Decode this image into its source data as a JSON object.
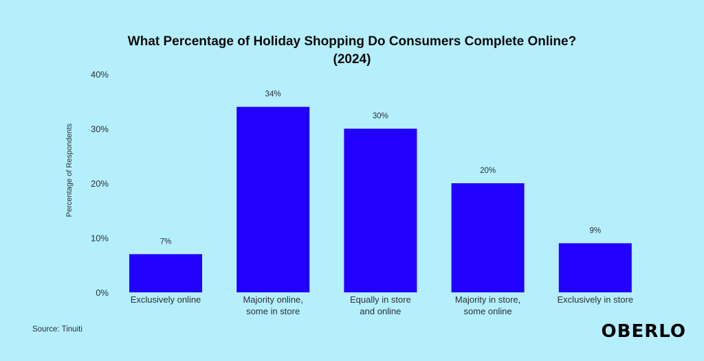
{
  "chart_data": {
    "type": "bar",
    "title": "What Percentage of Holiday Shopping Do Consumers Complete Online?",
    "subtitle": "(2024)",
    "xlabel": "",
    "ylabel": "Percentage of Respondents",
    "ylim": [
      0,
      40
    ],
    "yticks": [
      0,
      10,
      20,
      30,
      40
    ],
    "ytick_labels": [
      "0%",
      "10%",
      "20%",
      "30%",
      "40%"
    ],
    "grid": false,
    "categories": [
      [
        "Exclusively online"
      ],
      [
        "Majority online,",
        "some in store"
      ],
      [
        "Equally in store",
        "and online"
      ],
      [
        "Majority in store,",
        "some online"
      ],
      [
        "Exclusively in store"
      ]
    ],
    "values": [
      7,
      34,
      30,
      20,
      9
    ],
    "data_labels": [
      "7%",
      "34%",
      "30%",
      "20%",
      "9%"
    ],
    "bar_color": "#2200ff"
  },
  "footer": {
    "source": "Source: Tinuiti",
    "brand": "OBERLO"
  }
}
